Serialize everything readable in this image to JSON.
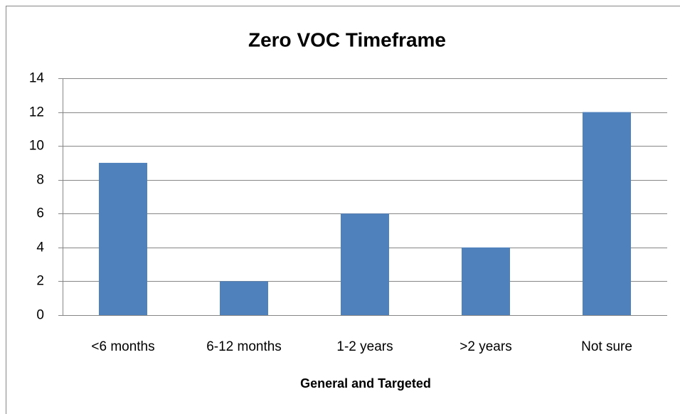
{
  "chart_data": {
    "type": "bar",
    "title": "Zero VOC Timeframe",
    "x_label": "General and Targeted",
    "categories": [
      "<6 months",
      "6-12 months",
      "1-2 years",
      ">2 years",
      "Not sure"
    ],
    "values": [
      9,
      2,
      6,
      4,
      12
    ],
    "color": "#4f81bd",
    "ylim": [
      0,
      14
    ],
    "yticks": [
      0,
      2,
      4,
      6,
      8,
      10,
      12,
      14
    ],
    "grid": true
  }
}
